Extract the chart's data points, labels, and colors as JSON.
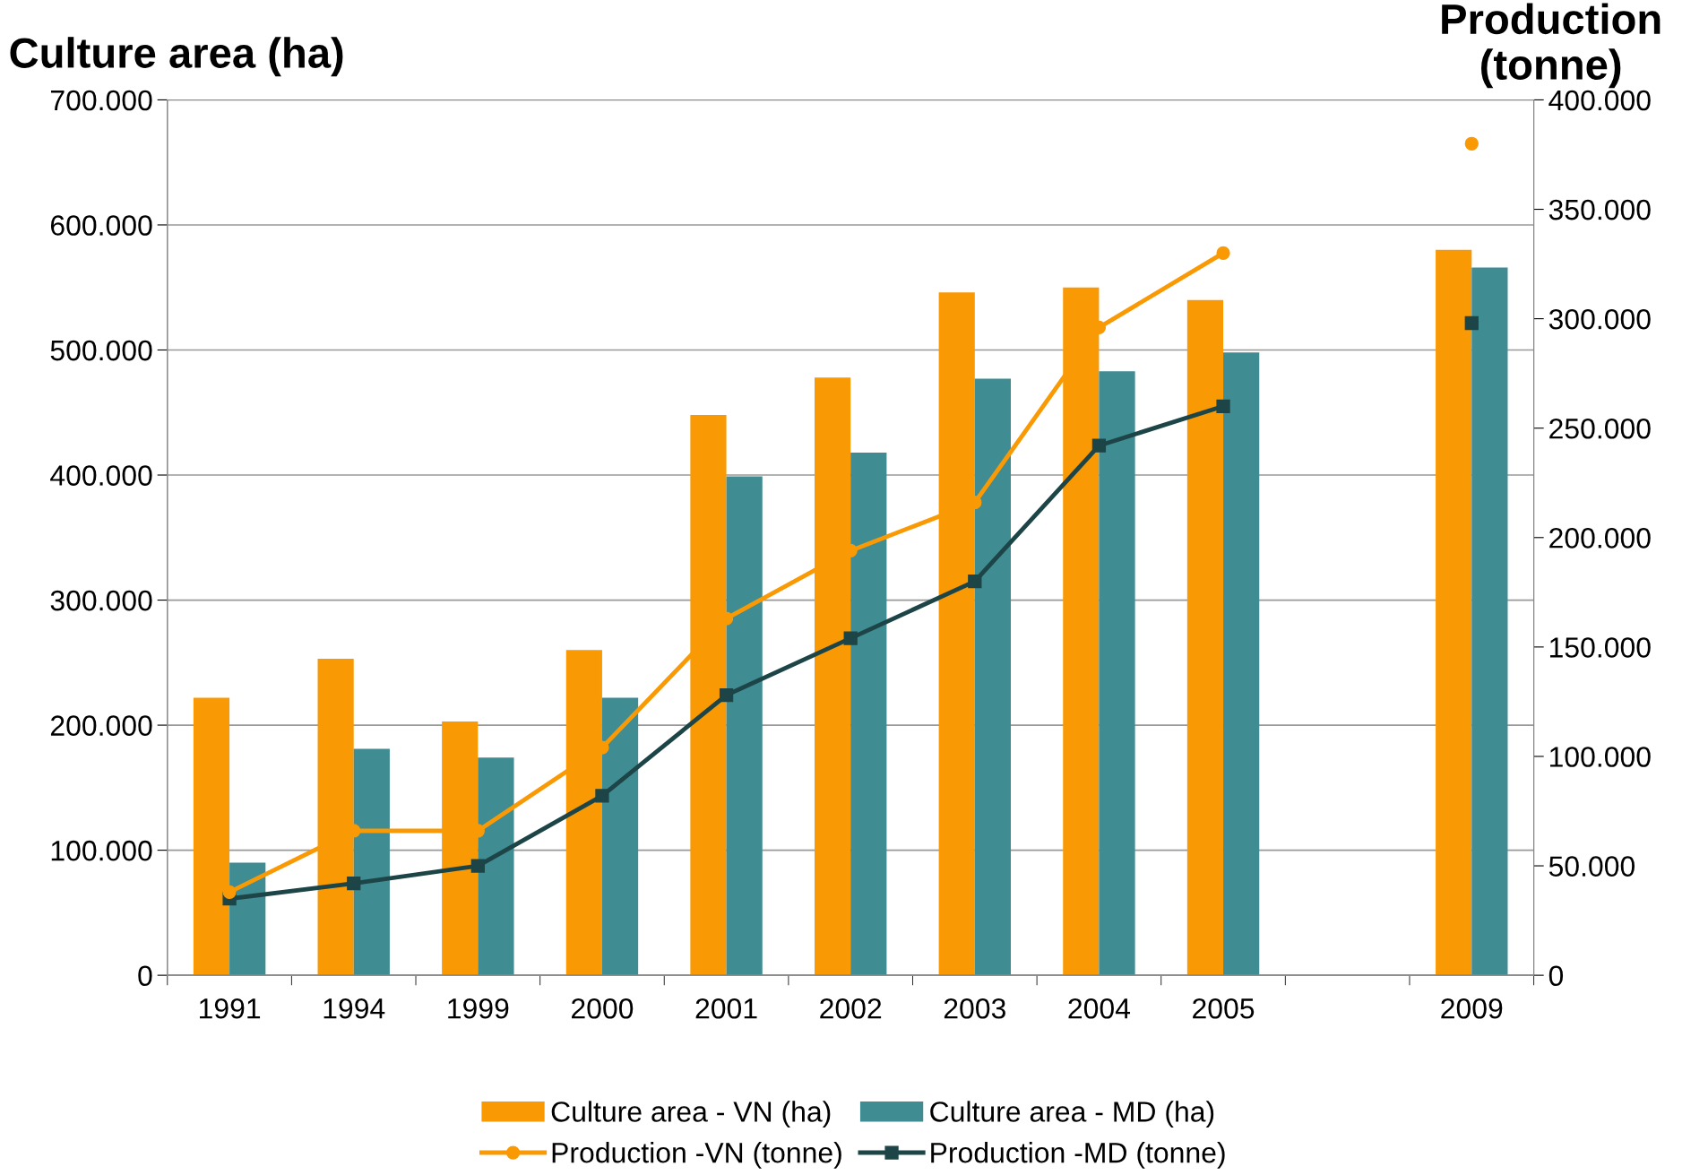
{
  "chart_data": {
    "type": "bar",
    "ylabel": "Culture area (ha)",
    "y2label": "Production\n(tonne)",
    "categories": [
      "1991",
      "1994",
      "1999",
      "2000",
      "2001",
      "2002",
      "2003",
      "2004",
      "2005",
      null,
      "2009"
    ],
    "series": [
      {
        "name": "Culture area - VN (ha)",
        "color": "#f99a05",
        "values": [
          222000,
          253000,
          203000,
          260000,
          448000,
          478000,
          546000,
          550000,
          540000,
          null,
          580000
        ]
      },
      {
        "name": "Culture area - MD (ha)",
        "color": "#3f8c92",
        "values": [
          90000,
          181000,
          174000,
          222000,
          399000,
          418000,
          477000,
          483000,
          498000,
          null,
          566000
        ]
      },
      {
        "name": "Production -VN (tonne)",
        "type": "line",
        "axis": "y2",
        "marker": "circle",
        "color": "#f99a05",
        "values": [
          38000,
          66000,
          66000,
          104000,
          163000,
          194000,
          216000,
          296000,
          330000,
          null,
          380000
        ]
      },
      {
        "name": "Production -MD (tonne)",
        "type": "line",
        "axis": "y2",
        "marker": "square",
        "color": "#1d4547",
        "values": [
          35000,
          42000,
          50000,
          82000,
          128000,
          154000,
          180000,
          242000,
          260000,
          null,
          298000
        ]
      }
    ],
    "ylim": [
      0,
      700000
    ],
    "yticks": [
      {
        "value": 0,
        "label": "0"
      },
      {
        "value": 100000,
        "label": "100.000"
      },
      {
        "value": 200000,
        "label": "200.000"
      },
      {
        "value": 300000,
        "label": "300.000"
      },
      {
        "value": 400000,
        "label": "400.000"
      },
      {
        "value": 500000,
        "label": "500.000"
      },
      {
        "value": 600000,
        "label": "600.000"
      },
      {
        "value": 700000,
        "label": "700.000"
      }
    ],
    "y2lim": [
      0,
      400000
    ],
    "y2ticks": [
      {
        "value": 0,
        "label": "0"
      },
      {
        "value": 50000,
        "label": "50.000"
      },
      {
        "value": 100000,
        "label": "100.000"
      },
      {
        "value": 150000,
        "label": "150.000"
      },
      {
        "value": 200000,
        "label": "200.000"
      },
      {
        "value": 250000,
        "label": "250.000"
      },
      {
        "value": 300000,
        "label": "300.000"
      },
      {
        "value": 350000,
        "label": "350.000"
      },
      {
        "value": 400000,
        "label": "400.000"
      }
    ],
    "grid": "y",
    "legend": "bottom"
  }
}
